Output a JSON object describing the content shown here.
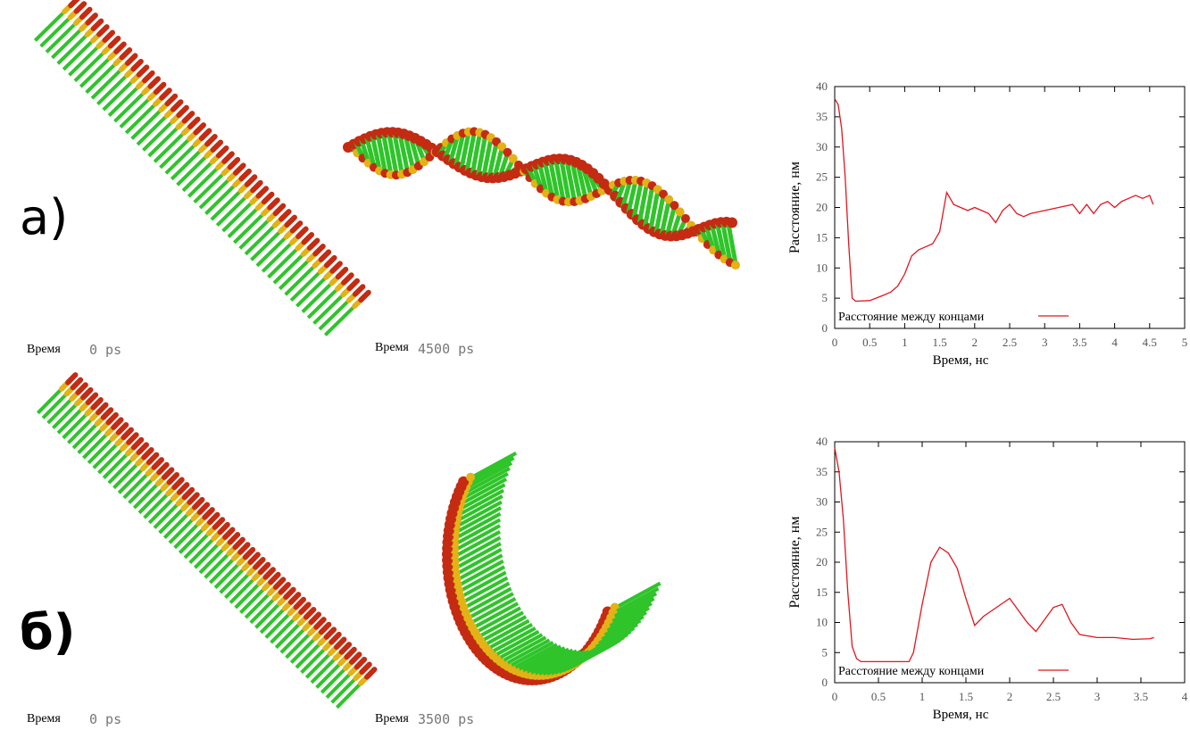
{
  "panels": [
    {
      "label": "а)",
      "snapshots": [
        {
          "time_label": "Время",
          "time": "0 ps"
        },
        {
          "time_label": "Время",
          "time": "4500 ps"
        }
      ]
    },
    {
      "label": "б)",
      "snapshots": [
        {
          "time_label": "Время",
          "time": "0 ps"
        },
        {
          "time_label": "Время",
          "time": "3500 ps"
        }
      ]
    }
  ],
  "chart_data": [
    {
      "type": "line",
      "xlabel": "Время, нс",
      "ylabel": "Расстояние, нм",
      "legend": "lower left",
      "xlim": [
        0,
        5
      ],
      "xticks": [
        0,
        0.5,
        1,
        1.5,
        2,
        2.5,
        3,
        3.5,
        4,
        4.5,
        5
      ],
      "ylim": [
        0,
        40
      ],
      "yticks": [
        0,
        5,
        10,
        15,
        20,
        25,
        30,
        35,
        40
      ],
      "x": [
        0,
        0.05,
        0.1,
        0.15,
        0.2,
        0.25,
        0.3,
        0.5,
        0.7,
        0.8,
        0.9,
        1.0,
        1.1,
        1.2,
        1.3,
        1.4,
        1.5,
        1.6,
        1.7,
        1.8,
        1.9,
        2.0,
        2.1,
        2.2,
        2.3,
        2.4,
        2.5,
        2.6,
        2.7,
        2.8,
        3.0,
        3.2,
        3.4,
        3.5,
        3.6,
        3.7,
        3.8,
        3.9,
        4.0,
        4.1,
        4.2,
        4.3,
        4.4,
        4.5,
        4.55
      ],
      "series": [
        {
          "name": "Расстояние между концами",
          "color": "#e0161e",
          "values": [
            38,
            37,
            33,
            25,
            14,
            5,
            4.5,
            4.6,
            5.5,
            6,
            7,
            9,
            12,
            13,
            13.5,
            14,
            16,
            22.5,
            20.5,
            20,
            19.5,
            20,
            19.5,
            19,
            17.5,
            19.5,
            20.5,
            19,
            18.5,
            19,
            19.5,
            20,
            20.5,
            19,
            20.5,
            19,
            20.5,
            21,
            20,
            21,
            21.5,
            22,
            21.5,
            22,
            20.5
          ]
        }
      ]
    },
    {
      "type": "line",
      "xlabel": "Время, нс",
      "ylabel": "Расстояние, нм",
      "legend": "lower left",
      "xlim": [
        0,
        4
      ],
      "xticks": [
        0,
        0.5,
        1,
        1.5,
        2,
        2.5,
        3,
        3.5,
        4
      ],
      "ylim": [
        0,
        40
      ],
      "yticks": [
        0,
        5,
        10,
        15,
        20,
        25,
        30,
        35,
        40
      ],
      "x": [
        0,
        0.05,
        0.1,
        0.15,
        0.2,
        0.25,
        0.3,
        0.5,
        0.7,
        0.85,
        0.9,
        1.0,
        1.1,
        1.2,
        1.3,
        1.4,
        1.5,
        1.6,
        1.7,
        1.8,
        1.9,
        2.0,
        2.1,
        2.2,
        2.3,
        2.4,
        2.5,
        2.6,
        2.7,
        2.8,
        3.0,
        3.2,
        3.4,
        3.6,
        3.65
      ],
      "series": [
        {
          "name": "Расстояние между концами",
          "color": "#e0161e",
          "values": [
            39,
            35,
            27,
            15,
            6,
            4,
            3.5,
            3.5,
            3.5,
            3.5,
            5,
            13,
            20,
            22.5,
            21.5,
            19,
            14,
            9.5,
            11,
            12,
            13,
            14,
            12,
            10,
            8.5,
            10.5,
            12.5,
            13,
            10,
            8,
            7.5,
            7.5,
            7.2,
            7.3,
            7.5
          ]
        }
      ]
    }
  ]
}
